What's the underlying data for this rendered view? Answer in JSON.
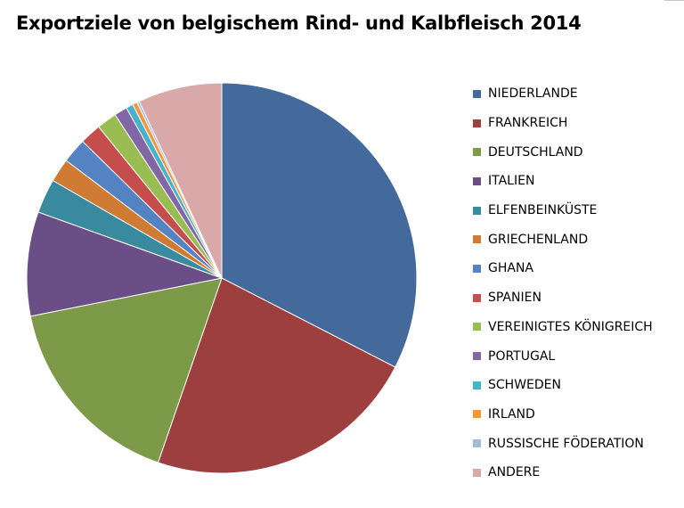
{
  "title": "Exportziele von belgischem Rind- und Kalbfleisch 2014",
  "chart_data": {
    "type": "pie",
    "title": "Exportziele von belgischem Rind- und Kalbfleisch 2014",
    "legend_position": "right",
    "start_angle_deg": 0,
    "direction": "clockwise",
    "slices": [
      {
        "label": "NIEDERLANDE",
        "value": 33.2,
        "color": "#44699b"
      },
      {
        "label": "FRANKREICH",
        "value": 23.2,
        "color": "#9c3f3e"
      },
      {
        "label": "DEUTSCHLAND",
        "value": 16.9,
        "color": "#7c9a47"
      },
      {
        "label": "ITALIEN",
        "value": 8.8,
        "color": "#6a4f87"
      },
      {
        "label": "ELFENBEINKÜSTE",
        "value": 2.9,
        "color": "#3a8a9f"
      },
      {
        "label": "GRIECHENLAND",
        "value": 2.0,
        "color": "#cf7b34"
      },
      {
        "label": "GHANA",
        "value": 2.1,
        "color": "#5383c2"
      },
      {
        "label": "SPANIEN",
        "value": 1.8,
        "color": "#c54d4b"
      },
      {
        "label": "VEREINIGTES KÖNIGREICH",
        "value": 1.7,
        "color": "#99bd52"
      },
      {
        "label": "PORTUGAL",
        "value": 1.1,
        "color": "#8366a5"
      },
      {
        "label": "SCHWEDEN",
        "value": 0.6,
        "color": "#48b2cb"
      },
      {
        "label": "IRLAND",
        "value": 0.4,
        "color": "#f49540"
      },
      {
        "label": "RUSSISCHE FÖDERATION",
        "value": 0.2,
        "color": "#a6b9d9"
      },
      {
        "label": "ANDERE",
        "value": 7.1,
        "color": "#d9a9a9"
      }
    ]
  }
}
